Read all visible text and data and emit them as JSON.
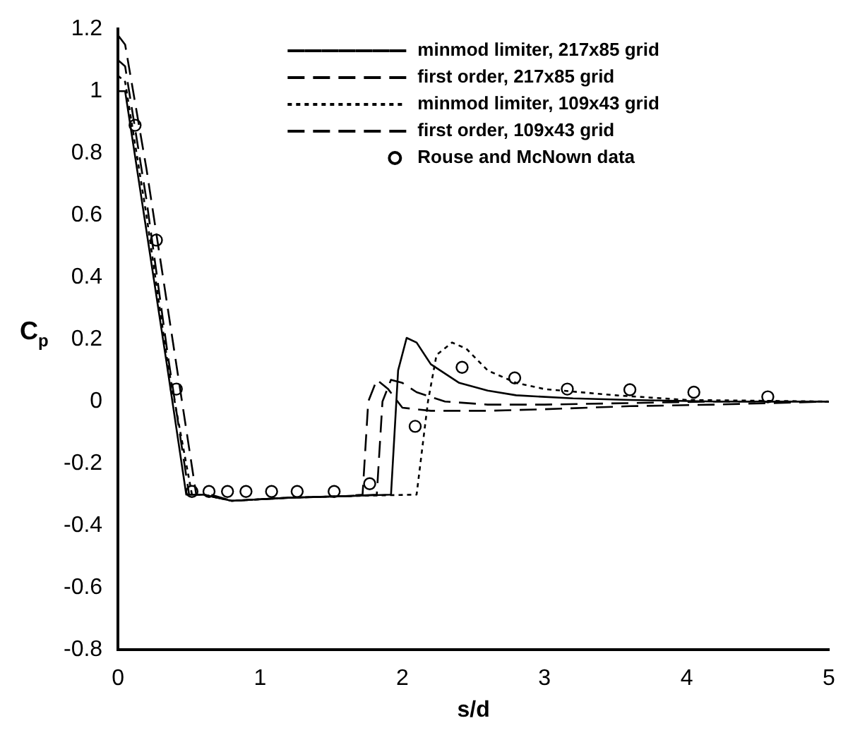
{
  "chart_data": {
    "type": "line",
    "xlabel": "s/d",
    "ylabel": "C$_{p}$",
    "xlim": [
      0,
      5
    ],
    "xticks": [
      0,
      1,
      2,
      3,
      4,
      5
    ],
    "ylim": [
      -0.8,
      1.2
    ],
    "yticks": [
      -0.8,
      -0.6,
      -0.4,
      -0.2,
      0,
      0.2,
      0.4,
      0.6,
      0.8,
      1,
      1.2
    ],
    "grid": false,
    "legend": "top",
    "marker": "none",
    "series": [
      {
        "name": "minmod limiter, 217x85 grid",
        "color": "#000000",
        "line_style": "solid",
        "x": [
          0,
          0.05,
          0.2,
          0.35,
          0.48,
          0.6,
          0.8,
          1.2,
          1.6,
          1.92,
          1.97,
          2.03,
          2.1,
          2.2,
          2.4,
          2.6,
          2.8,
          3.2,
          3.6,
          4.2,
          5
        ],
        "values": [
          1.0,
          1.0,
          0.55,
          0.1,
          -0.3,
          -0.3,
          -0.32,
          -0.31,
          -0.305,
          -0.3,
          0.1,
          0.205,
          0.19,
          0.12,
          0.06,
          0.035,
          0.02,
          0.01,
          0.005,
          0.0,
          0.0
        ]
      },
      {
        "name": "first order, 217x85 grid",
        "color": "#000000",
        "line_style": "dashed",
        "x": [
          0,
          0.05,
          0.2,
          0.35,
          0.5,
          0.6,
          0.8,
          1.2,
          1.6,
          1.72,
          1.76,
          1.82,
          1.9,
          2.0,
          2.2,
          2.6,
          3.0,
          3.6,
          4.2,
          5
        ],
        "values": [
          1.1,
          1.08,
          0.65,
          0.15,
          -0.3,
          -0.3,
          -0.32,
          -0.31,
          -0.305,
          -0.3,
          0.0,
          0.07,
          0.04,
          -0.02,
          -0.03,
          -0.03,
          -0.025,
          -0.015,
          -0.01,
          0.0
        ]
      },
      {
        "name": "minmod limiter, 109x43 grid",
        "color": "#000000",
        "line_style": "dotted",
        "x": [
          0,
          0.05,
          0.2,
          0.35,
          0.52,
          0.6,
          0.8,
          1.2,
          1.6,
          2.1,
          2.18,
          2.24,
          2.35,
          2.45,
          2.6,
          2.8,
          3.0,
          3.5,
          4.0,
          5
        ],
        "values": [
          1.05,
          1.03,
          0.6,
          0.12,
          -0.3,
          -0.3,
          -0.32,
          -0.31,
          -0.305,
          -0.3,
          0.0,
          0.15,
          0.19,
          0.17,
          0.1,
          0.06,
          0.04,
          0.02,
          0.005,
          0.0
        ]
      },
      {
        "name": "first order, 109x43 grid",
        "color": "#000000",
        "line_style": "dashed",
        "x": [
          0,
          0.05,
          0.2,
          0.4,
          0.55,
          0.65,
          0.8,
          1.2,
          1.6,
          1.82,
          1.86,
          1.92,
          2.0,
          2.1,
          2.3,
          2.6,
          3.0,
          3.6,
          4.2,
          5
        ],
        "values": [
          1.18,
          1.15,
          0.75,
          0.15,
          -0.3,
          -0.3,
          -0.32,
          -0.31,
          -0.305,
          -0.3,
          0.0,
          0.07,
          0.06,
          0.03,
          0.0,
          -0.01,
          -0.01,
          -0.005,
          0.0,
          0.0
        ]
      },
      {
        "name": "Rouse and McNown data",
        "type": "scatter",
        "color": "#000000",
        "marker": "circle",
        "x": [
          0.12,
          0.27,
          0.41,
          0.52,
          0.64,
          0.77,
          0.9,
          1.08,
          1.26,
          1.52,
          1.77,
          2.09,
          2.42,
          2.79,
          3.16,
          3.6,
          4.05,
          4.57
        ],
        "values": [
          0.89,
          0.52,
          0.04,
          -0.29,
          -0.29,
          -0.29,
          -0.29,
          -0.29,
          -0.29,
          -0.29,
          -0.265,
          -0.08,
          0.11,
          0.076,
          0.04,
          0.038,
          0.03,
          0.015
        ]
      }
    ]
  }
}
